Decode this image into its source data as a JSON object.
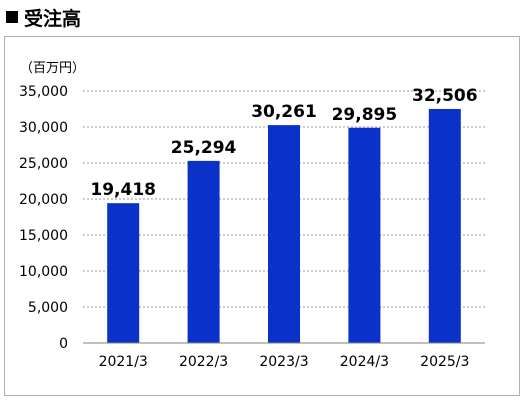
{
  "header": {
    "title": "受注高"
  },
  "chart_data": {
    "type": "bar",
    "title": "受注高",
    "ylabel": "（百万円）",
    "xlabel": "",
    "categories": [
      "2021/3",
      "2022/3",
      "2023/3",
      "2024/3",
      "2025/3"
    ],
    "values": [
      19418,
      25294,
      30261,
      29895,
      32506
    ],
    "value_labels": [
      "19,418",
      "25,294",
      "30,261",
      "29,895",
      "32,506"
    ],
    "ylim": [
      0,
      35000
    ],
    "yticks": [
      0,
      5000,
      10000,
      15000,
      20000,
      25000,
      30000,
      35000
    ],
    "ytick_labels": [
      "0",
      "5,000",
      "10,000",
      "15,000",
      "20,000",
      "25,000",
      "30,000",
      "35,000"
    ],
    "grid": true,
    "legend": "none",
    "bar_color": "#0a32c8"
  }
}
